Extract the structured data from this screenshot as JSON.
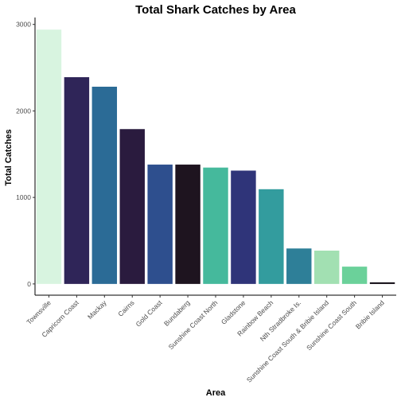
{
  "chart_data": {
    "type": "bar",
    "title": "Total Shark Catches by Area",
    "xlabel": "Area",
    "ylabel": "Total Catches",
    "ylim": [
      -130,
      3080
    ],
    "yticks": [
      0,
      1000,
      2000,
      3000
    ],
    "grid": false,
    "legend": "none",
    "categories": [
      "Townsville",
      "Capricorn Coast",
      "Mackay",
      "Cairns",
      "Gold Coast",
      "Bundaberg",
      "Sunshine Coast North",
      "Gladstone",
      "Rainbow Beach",
      "Nth Stradbroke Is.",
      "Sunshine Coast South & Bribie Island",
      "Sunshine Coast South",
      "Bribie Island"
    ],
    "values": [
      2940,
      2390,
      2280,
      1790,
      1380,
      1380,
      1345,
      1310,
      1095,
      410,
      385,
      200,
      15
    ],
    "colors": [
      "#d8f4e0",
      "#2f2558",
      "#2b6b96",
      "#2a1b3e",
      "#2e4f8e",
      "#1e141f",
      "#45b99c",
      "#2f3479",
      "#339c9e",
      "#2e7f98",
      "#a2e0b2",
      "#6bd19a",
      "#0d0710"
    ]
  }
}
